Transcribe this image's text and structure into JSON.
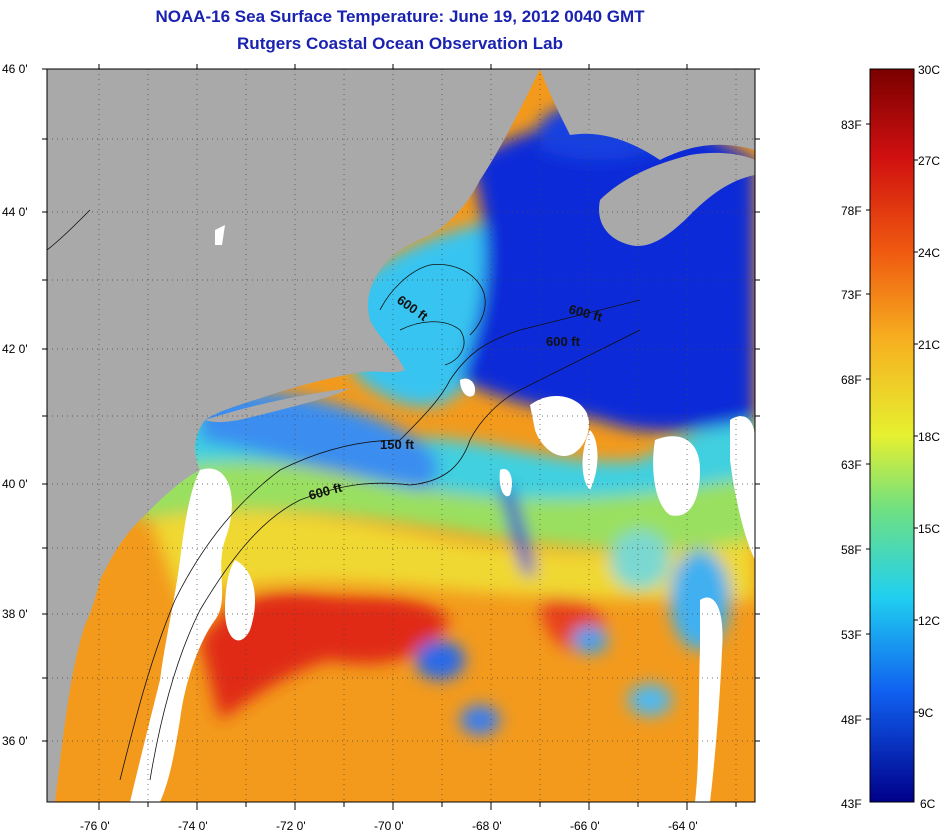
{
  "title": {
    "line1": "NOAA-16 Sea Surface Temperature:  June 19, 2012 0040 GMT",
    "line2": "Rutgers Coastal Ocean Observation Lab"
  },
  "map": {
    "lat_labels": [
      "46 0'",
      "44 0'",
      "42 0'",
      "40 0'",
      "38 0'",
      "36 0'"
    ],
    "lon_labels": [
      "-76 0'",
      "-74 0'",
      "-72 0'",
      "-70 0'",
      "-68 0'",
      "-66 0'",
      "-64 0'"
    ],
    "contour_labels": [
      "600 ft",
      "600 ft",
      "600 ft",
      "150 ft",
      "600 ft"
    ],
    "colors": {
      "land": "#a9a9a9",
      "cloud": "#ffffff",
      "deep_blue": "#0a1fd0",
      "cyan": "#30c8f0",
      "green": "#7ee07a",
      "yellow": "#f0e030",
      "orange": "#f39a1c",
      "red": "#e02a14"
    }
  },
  "colorbar": {
    "celsius_labels": [
      "30C",
      "27C",
      "24C",
      "21C",
      "18C",
      "15C",
      "12C",
      "9C",
      "6C"
    ],
    "fahrenheit_labels": [
      "83F",
      "78F",
      "73F",
      "68F",
      "63F",
      "58F",
      "53F",
      "48F",
      "43F"
    ],
    "celsius_range": [
      6,
      30
    ]
  }
}
